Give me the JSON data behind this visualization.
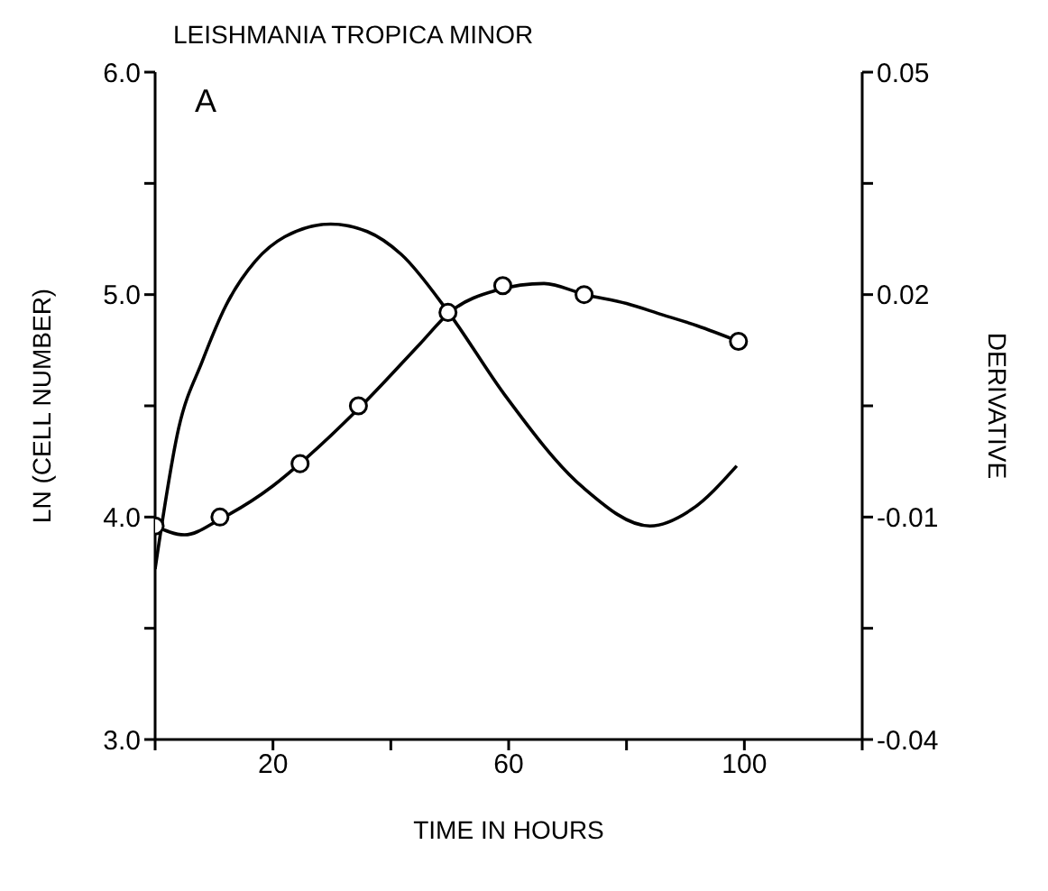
{
  "chart_data": {
    "type": "line",
    "title": "LEISHMANIA TROPICA MINOR",
    "xlabel": "TIME IN HOURS",
    "ylabel": "LN (CELL NUMBER)",
    "y2label": "DERIVATIVE",
    "annotations": [
      "A"
    ],
    "xlim": [
      0,
      120
    ],
    "xticks": [
      {
        "value": 0,
        "label": null
      },
      20,
      {
        "value": 40,
        "label": null
      },
      60,
      {
        "value": 80,
        "label": null
      },
      100,
      {
        "value": 120,
        "label": null
      }
    ],
    "ylim": [
      3,
      6
    ],
    "yticks": [
      {
        "value": 3,
        "label": "3.0"
      },
      {
        "value": 3.5,
        "label": null
      },
      {
        "value": 4,
        "label": "4.0"
      },
      {
        "value": 4.5,
        "label": null
      },
      {
        "value": 5,
        "label": "5.0"
      },
      {
        "value": 5.5,
        "label": null
      },
      {
        "value": 6,
        "label": "6.0"
      }
    ],
    "y2lim": [
      -0.04,
      0.05
    ],
    "y2ticks": [
      -0.04,
      {
        "value": -0.025,
        "label": null
      },
      -0.01,
      {
        "value": 0.005,
        "label": null
      },
      0.02,
      {
        "value": 0.035,
        "label": null
      },
      0.05
    ],
    "grid": false,
    "series": [
      {
        "type": "scatter",
        "marker": "circle",
        "color": "#000000",
        "x": [
          0,
          11,
          24.6,
          34.5,
          49.7,
          59,
          72.8,
          99
        ],
        "values": [
          3.96,
          4.0,
          4.24,
          4.5,
          4.92,
          5.04,
          5.0,
          4.79
        ]
      },
      {
        "marker": "none",
        "color": "#000000",
        "x": [
          0,
          5,
          11,
          20,
          25,
          35,
          45,
          50,
          58,
          66,
          73,
          80,
          86,
          92,
          99
        ],
        "values": [
          3.96,
          3.92,
          3.99,
          4.14,
          4.25,
          4.5,
          4.78,
          4.92,
          5.02,
          5.05,
          5.0,
          4.96,
          4.91,
          4.86,
          4.79
        ]
      },
      {
        "marker": "none",
        "axis": "y2",
        "color": "#000000",
        "x": [
          0,
          4,
          8,
          12,
          17,
          22,
          29.8,
          36,
          41.8,
          49.7,
          59.3,
          72.6,
          84,
          91,
          98.7
        ],
        "values": [
          -0.017,
          0.002,
          0.011,
          0.0185,
          0.0245,
          0.0278,
          0.0295,
          0.0285,
          0.0254,
          0.0177,
          0.0065,
          -0.006,
          -0.0112,
          -0.009,
          -0.0031
        ]
      }
    ]
  }
}
